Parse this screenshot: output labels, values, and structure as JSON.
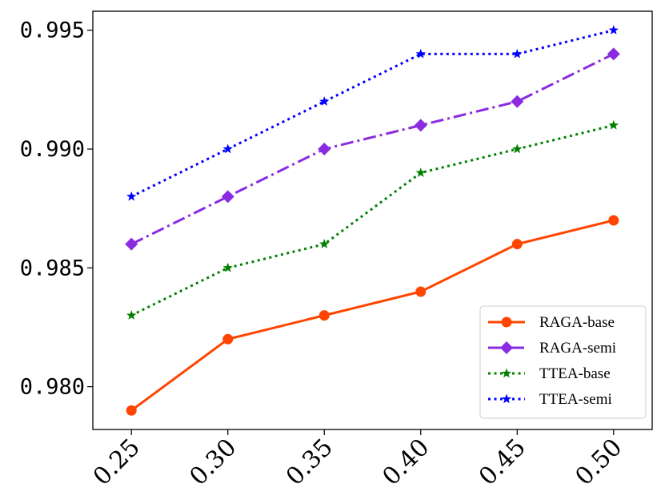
{
  "chart_data": {
    "type": "line",
    "title": "",
    "xlabel": "",
    "ylabel": "",
    "x": [
      0.25,
      0.3,
      0.35,
      0.4,
      0.45,
      0.5
    ],
    "x_tick_labels": [
      "0.25",
      "0.30",
      "0.35",
      "0.40",
      "0.45",
      "0.50"
    ],
    "y_ticks": [
      0.98,
      0.985,
      0.99,
      0.995
    ],
    "y_tick_labels": [
      "0.980",
      "0.985",
      "0.990",
      "0.995"
    ],
    "xlim": [
      0.23,
      0.52
    ],
    "ylim": [
      0.9782,
      0.9958
    ],
    "grid": false,
    "legend_position": "lower-right",
    "series": [
      {
        "name": "RAGA-base",
        "values": [
          0.979,
          0.982,
          0.983,
          0.984,
          0.986,
          0.987
        ],
        "color": "#ff4500",
        "line_style": "solid",
        "marker": "circle"
      },
      {
        "name": "RAGA-semi",
        "values": [
          0.986,
          0.988,
          0.99,
          0.991,
          0.992,
          0.994
        ],
        "color": "#8a2be2",
        "line_style": "dashdot",
        "marker": "diamond"
      },
      {
        "name": "TTEA-base",
        "values": [
          0.983,
          0.985,
          0.986,
          0.989,
          0.99,
          0.991
        ],
        "color": "#008000",
        "line_style": "dotted",
        "marker": "star"
      },
      {
        "name": "TTEA-semi",
        "values": [
          0.988,
          0.99,
          0.992,
          0.994,
          0.994,
          0.995
        ],
        "color": "#0000ff",
        "line_style": "dotted",
        "marker": "star"
      }
    ]
  }
}
